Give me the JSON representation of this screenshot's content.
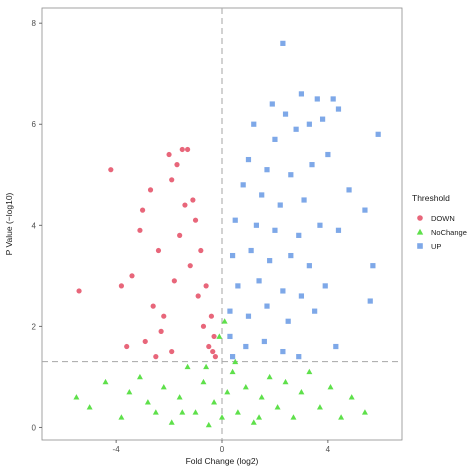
{
  "chart_data": {
    "type": "scatter",
    "title": "",
    "xlabel": "Fold Change (log2)",
    "ylabel": "P Value (−log10)",
    "xlim": [
      -6.8,
      6.8
    ],
    "ylim": [
      -0.25,
      8.3
    ],
    "x_ticks": [
      -4,
      0,
      4
    ],
    "y_ticks": [
      0,
      2,
      4,
      6,
      8
    ],
    "grid": false,
    "threshold_lines": {
      "x": 0,
      "y": 1.3
    },
    "legend": {
      "title": "Threshold",
      "placement": "right",
      "entries": [
        {
          "label": "DOWN",
          "color": "#e8667a",
          "shape": "circle"
        },
        {
          "label": "NoChange",
          "color": "#5ee04a",
          "shape": "triangle"
        },
        {
          "label": "UP",
          "color": "#7ea8e8",
          "shape": "square"
        }
      ]
    },
    "series": [
      {
        "name": "DOWN",
        "color": "#e8667a",
        "shape": "circle",
        "points": [
          [
            -5.4,
            2.7
          ],
          [
            -4.2,
            5.1
          ],
          [
            -3.8,
            2.8
          ],
          [
            -3.4,
            3.0
          ],
          [
            -3.1,
            3.9
          ],
          [
            -3.0,
            4.3
          ],
          [
            -2.9,
            1.7
          ],
          [
            -2.7,
            4.7
          ],
          [
            -2.6,
            2.4
          ],
          [
            -2.4,
            3.5
          ],
          [
            -2.3,
            1.9
          ],
          [
            -2.2,
            2.2
          ],
          [
            -2.0,
            5.4
          ],
          [
            -1.9,
            4.9
          ],
          [
            -1.8,
            2.9
          ],
          [
            -1.7,
            5.2
          ],
          [
            -1.6,
            3.8
          ],
          [
            -1.5,
            5.5
          ],
          [
            -1.4,
            4.4
          ],
          [
            -1.3,
            5.5
          ],
          [
            -1.2,
            3.2
          ],
          [
            -1.1,
            4.5
          ],
          [
            -1.0,
            4.1
          ],
          [
            -0.9,
            2.6
          ],
          [
            -0.8,
            3.5
          ],
          [
            -0.7,
            2.0
          ],
          [
            -0.6,
            2.8
          ],
          [
            -0.5,
            1.6
          ],
          [
            -0.4,
            2.2
          ],
          [
            -0.35,
            1.5
          ],
          [
            -0.3,
            1.8
          ],
          [
            -0.25,
            1.4
          ],
          [
            -2.5,
            1.4
          ],
          [
            -3.6,
            1.6
          ],
          [
            -1.9,
            1.5
          ]
        ]
      },
      {
        "name": "NoChange",
        "color": "#5ee04a",
        "shape": "triangle",
        "points": [
          [
            -5.5,
            0.6
          ],
          [
            -5.0,
            0.4
          ],
          [
            -4.4,
            0.9
          ],
          [
            -3.8,
            0.2
          ],
          [
            -3.5,
            0.7
          ],
          [
            -3.1,
            1.0
          ],
          [
            -2.8,
            0.5
          ],
          [
            -2.5,
            0.3
          ],
          [
            -2.2,
            0.8
          ],
          [
            -1.9,
            0.1
          ],
          [
            -1.6,
            0.6
          ],
          [
            -1.3,
            1.2
          ],
          [
            -1.0,
            0.3
          ],
          [
            -0.7,
            0.9
          ],
          [
            -0.5,
            0.05
          ],
          [
            -0.3,
            0.5
          ],
          [
            -0.1,
            1.8
          ],
          [
            0.0,
            0.2
          ],
          [
            0.1,
            2.1
          ],
          [
            0.2,
            0.7
          ],
          [
            0.4,
            1.1
          ],
          [
            0.6,
            0.3
          ],
          [
            0.9,
            0.8
          ],
          [
            1.2,
            0.1
          ],
          [
            1.5,
            0.6
          ],
          [
            1.8,
            1.0
          ],
          [
            2.1,
            0.4
          ],
          [
            2.4,
            0.9
          ],
          [
            2.7,
            0.2
          ],
          [
            3.0,
            0.7
          ],
          [
            3.3,
            1.1
          ],
          [
            3.7,
            0.4
          ],
          [
            4.1,
            0.8
          ],
          [
            4.5,
            0.2
          ],
          [
            4.9,
            0.6
          ],
          [
            5.4,
            0.3
          ],
          [
            -0.6,
            1.2
          ],
          [
            0.5,
            1.3
          ],
          [
            -1.5,
            0.3
          ],
          [
            1.4,
            0.2
          ]
        ]
      },
      {
        "name": "UP",
        "color": "#7ea8e8",
        "shape": "square",
        "points": [
          [
            2.3,
            7.6
          ],
          [
            3.0,
            6.6
          ],
          [
            3.6,
            6.5
          ],
          [
            4.2,
            6.5
          ],
          [
            4.4,
            6.3
          ],
          [
            1.9,
            6.4
          ],
          [
            2.4,
            6.2
          ],
          [
            3.3,
            6.0
          ],
          [
            3.8,
            6.1
          ],
          [
            1.2,
            6.0
          ],
          [
            2.0,
            5.7
          ],
          [
            2.8,
            5.9
          ],
          [
            5.9,
            5.8
          ],
          [
            4.0,
            5.4
          ],
          [
            1.0,
            5.3
          ],
          [
            1.7,
            5.1
          ],
          [
            2.6,
            5.0
          ],
          [
            3.4,
            5.2
          ],
          [
            4.8,
            4.7
          ],
          [
            0.8,
            4.8
          ],
          [
            1.5,
            4.6
          ],
          [
            2.2,
            4.4
          ],
          [
            3.1,
            4.5
          ],
          [
            5.4,
            4.3
          ],
          [
            0.5,
            4.1
          ],
          [
            1.3,
            4.0
          ],
          [
            2.0,
            3.9
          ],
          [
            2.9,
            3.8
          ],
          [
            3.7,
            4.0
          ],
          [
            4.4,
            3.9
          ],
          [
            0.4,
            3.4
          ],
          [
            1.1,
            3.5
          ],
          [
            1.8,
            3.3
          ],
          [
            2.6,
            3.4
          ],
          [
            3.3,
            3.2
          ],
          [
            5.7,
            3.2
          ],
          [
            0.6,
            2.8
          ],
          [
            1.4,
            2.9
          ],
          [
            2.3,
            2.7
          ],
          [
            3.0,
            2.6
          ],
          [
            3.9,
            2.8
          ],
          [
            0.3,
            2.3
          ],
          [
            1.0,
            2.2
          ],
          [
            1.7,
            2.4
          ],
          [
            2.5,
            2.1
          ],
          [
            3.5,
            2.3
          ],
          [
            5.6,
            2.5
          ],
          [
            0.3,
            1.8
          ],
          [
            0.9,
            1.6
          ],
          [
            1.6,
            1.7
          ],
          [
            2.3,
            1.5
          ],
          [
            2.9,
            1.4
          ],
          [
            0.4,
            1.4
          ],
          [
            4.3,
            1.6
          ]
        ]
      }
    ]
  }
}
